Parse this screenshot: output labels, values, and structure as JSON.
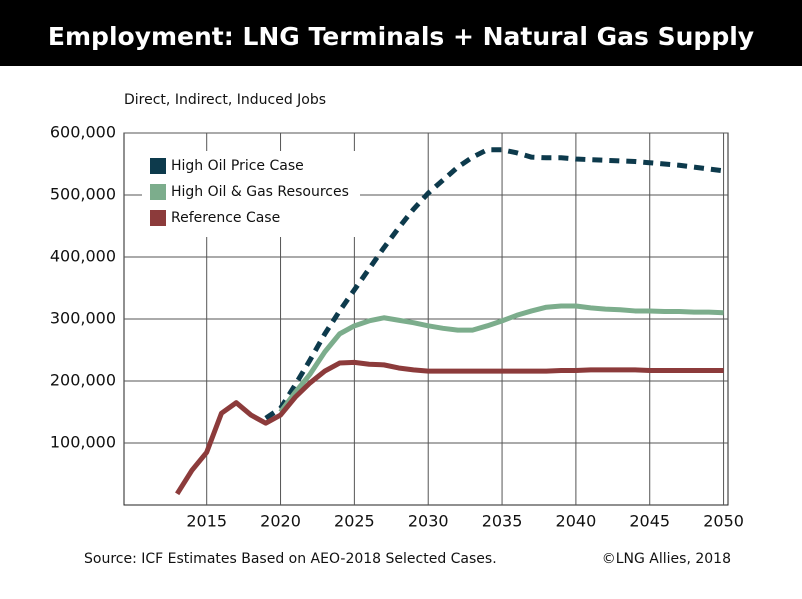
{
  "chart_data": {
    "type": "line",
    "title": "Employment: LNG Terminals + Natural Gas Supply",
    "y_label": "Direct, Indirect, Induced Jobs",
    "source": "Source:  ICF Estimates Based on AEO-2018 Selected Cases.",
    "copyright": "©LNG Allies, 2018",
    "x": [
      2013,
      2014,
      2015,
      2016,
      2017,
      2018,
      2019,
      2020,
      2021,
      2022,
      2023,
      2024,
      2025,
      2026,
      2027,
      2028,
      2029,
      2030,
      2031,
      2032,
      2033,
      2034,
      2035,
      2036,
      2037,
      2038,
      2039,
      2040,
      2041,
      2042,
      2043,
      2044,
      2045,
      2046,
      2047,
      2048,
      2049,
      2050
    ],
    "series": [
      {
        "name": "High Oil Price Case",
        "color": "#0d3a4c",
        "style": "dashed",
        "values": [
          null,
          null,
          null,
          null,
          null,
          null,
          140000,
          156000,
          194000,
          234000,
          276000,
          313000,
          347000,
          381000,
          415000,
          447000,
          477000,
          503000,
          524000,
          545000,
          561000,
          573000,
          573000,
          568000,
          561000,
          560000,
          560000,
          558000,
          557000,
          556000,
          555000,
          554000,
          552000,
          550000,
          548000,
          545000,
          542000,
          539000
        ]
      },
      {
        "name": "High Oil & Gas Resources",
        "color": "#7cad8c",
        "style": "solid",
        "values": [
          null,
          null,
          null,
          null,
          null,
          null,
          null,
          150000,
          182000,
          211000,
          247000,
          276000,
          289000,
          297000,
          302000,
          298000,
          294000,
          289000,
          285000,
          282000,
          282000,
          289000,
          297000,
          306000,
          313000,
          319000,
          321000,
          321000,
          318000,
          316000,
          315000,
          313000,
          313000,
          312000,
          312000,
          311000,
          311000,
          310000
        ]
      },
      {
        "name": "Reference Case",
        "color": "#8c3b3b",
        "style": "solid",
        "values": [
          18000,
          56000,
          85000,
          148000,
          165000,
          145000,
          132000,
          145000,
          174000,
          197000,
          216000,
          229000,
          230000,
          227000,
          226000,
          221000,
          218000,
          216000,
          216000,
          216000,
          216000,
          216000,
          216000,
          216000,
          216000,
          216000,
          217000,
          217000,
          218000,
          218000,
          218000,
          218000,
          217000,
          217000,
          217000,
          217000,
          217000,
          217000
        ]
      }
    ],
    "xlim": [
      2009.4,
      2050.3
    ],
    "xticks": [
      2015,
      2020,
      2025,
      2030,
      2035,
      2040,
      2045,
      2050
    ],
    "ylim": [
      0,
      600000
    ],
    "yticks": [
      {
        "value": 100000,
        "label": "100,000"
      },
      {
        "value": 200000,
        "label": "200,000"
      },
      {
        "value": 300000,
        "label": "300,000"
      },
      {
        "value": 400000,
        "label": "400,000"
      },
      {
        "value": 500000,
        "label": "500,000"
      },
      {
        "value": 600000,
        "label": "600,000"
      }
    ],
    "grid": true,
    "legend": "top-left"
  }
}
